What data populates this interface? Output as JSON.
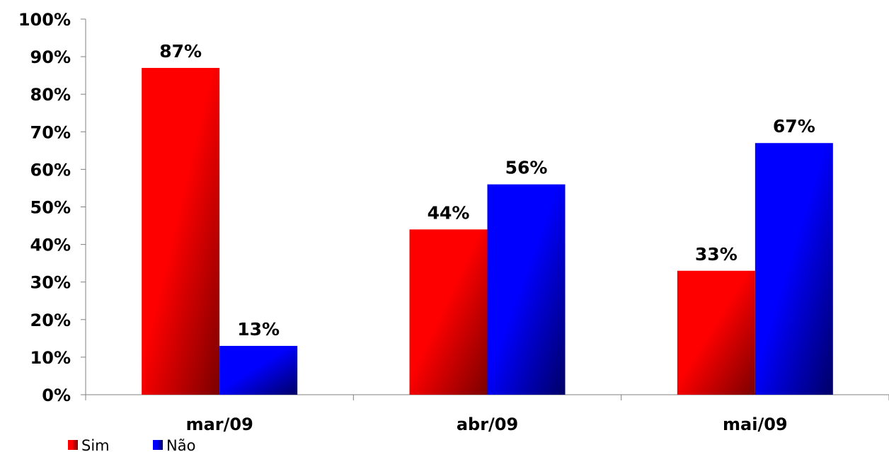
{
  "chart_data": {
    "type": "bar",
    "categories": [
      "mar/09",
      "abr/09",
      "mai/09"
    ],
    "series": [
      {
        "name": "Sim",
        "values": [
          87,
          44,
          33
        ],
        "color": "#ff0000",
        "color_dark": "#7a0000"
      },
      {
        "name": "Não",
        "values": [
          13,
          56,
          67
        ],
        "color": "#0000ff",
        "color_dark": "#000066"
      }
    ],
    "ylim": [
      0,
      100
    ],
    "yticks": [
      0,
      10,
      20,
      30,
      40,
      50,
      60,
      70,
      80,
      90,
      100
    ],
    "ytick_suffix": "%",
    "data_label_suffix": "%",
    "grid": false,
    "legend_position": "bottom-left"
  }
}
